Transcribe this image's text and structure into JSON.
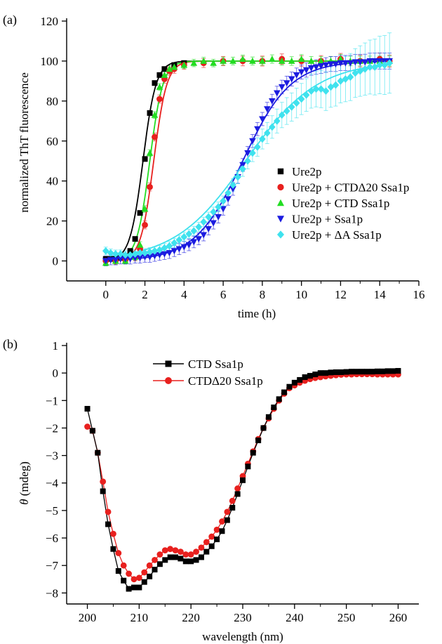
{
  "chart_data": [
    {
      "panel": "(a)",
      "type": "scatter",
      "xlabel": "time (h)",
      "ylabel": "normalized ThT fluorescence",
      "xlim": [
        -2,
        16
      ],
      "ylim": [
        -10,
        120
      ],
      "xticks": [
        0,
        2,
        4,
        6,
        8,
        10,
        12,
        14,
        16
      ],
      "yticks": [
        0,
        20,
        40,
        60,
        80,
        100,
        120
      ],
      "legend_position": "center-right",
      "series": [
        {
          "name": "Ure2p",
          "color": "#000000",
          "marker": "square",
          "midpoint": 1.9,
          "rate": 3.0,
          "error": 0,
          "x": [
            0,
            0.25,
            0.5,
            0.75,
            1.0,
            1.25,
            1.5,
            1.75,
            2.0,
            2.25,
            2.5,
            2.75,
            3.0,
            3.5,
            4.0
          ],
          "y": [
            1,
            1,
            1,
            1.5,
            2.5,
            5,
            11,
            24,
            51,
            74,
            89,
            93,
            96,
            98,
            99
          ]
        },
        {
          "name": "Ure2p + CTDΔ20 Ssa1p",
          "color": "#e8201e",
          "marker": "circle",
          "midpoint": 2.45,
          "rate": 3.0,
          "error": 3,
          "x": [
            0,
            0.5,
            1.0,
            1.5,
            1.75,
            2.0,
            2.25,
            2.5,
            2.75,
            3.0,
            3.25,
            3.5,
            4.0,
            5,
            6,
            7,
            8,
            9,
            10,
            11,
            12,
            13,
            14,
            14.5
          ],
          "y": [
            0,
            0,
            0.5,
            2,
            6,
            18,
            37,
            62,
            81,
            91,
            95,
            96,
            98,
            99,
            100,
            100,
            100,
            101,
            100,
            100,
            101,
            100,
            101,
            100
          ]
        },
        {
          "name": "Ure2p + CTD Ssa1p",
          "color": "#22dd22",
          "marker": "triangle-up",
          "midpoint": 2.25,
          "rate": 3.0,
          "error": 2.5,
          "x": [
            0,
            0.5,
            1.0,
            1.5,
            1.75,
            2.0,
            2.25,
            2.5,
            2.75,
            3.0,
            3.25,
            3.5,
            4.0,
            4.5,
            5,
            5.5,
            6,
            6.5,
            7,
            7.5,
            8,
            8.5,
            9,
            9.5,
            10,
            10.5,
            11,
            11.5,
            12,
            12.5,
            13,
            13.5,
            14,
            14.5
          ],
          "y": [
            -1,
            0,
            0,
            2,
            8,
            26,
            54,
            73,
            87,
            93,
            96,
            97,
            98,
            99,
            100,
            99,
            100,
            100,
            101,
            100,
            100,
            101,
            100,
            100,
            101,
            100,
            100,
            100,
            101,
            100,
            100,
            100,
            100,
            100
          ]
        },
        {
          "name": "Ure2p + Ssa1p",
          "color": "#1c1ce0",
          "marker": "triangle-down",
          "midpoint": 7.0,
          "rate": 0.82,
          "error": 4,
          "x": [
            0,
            0.25,
            0.5,
            0.75,
            1.0,
            1.25,
            1.5,
            1.75,
            2.0,
            2.25,
            2.5,
            2.75,
            3.0,
            3.25,
            3.5,
            3.75,
            4.0,
            4.25,
            4.5,
            4.75,
            5.0,
            5.25,
            5.5,
            5.75,
            6.0,
            6.25,
            6.5,
            6.75,
            7.0,
            7.25,
            7.5,
            7.75,
            8.0,
            8.25,
            8.5,
            8.75,
            9.0,
            9.25,
            9.5,
            9.75,
            10.0,
            10.25,
            10.5,
            10.75,
            11.0,
            11.25,
            11.5,
            11.75,
            12.0,
            12.25,
            12.5,
            12.75,
            13.0,
            13.25,
            13.5,
            13.75,
            14.0,
            14.25,
            14.5
          ],
          "y": [
            0,
            0.5,
            0.5,
            1,
            1,
            1,
            1.5,
            1.5,
            2,
            2,
            2.5,
            3,
            3.5,
            4,
            5,
            6,
            7,
            8,
            9.5,
            11,
            13,
            16,
            19,
            22,
            26,
            31,
            36,
            42,
            48,
            54,
            60,
            66,
            71,
            76,
            80,
            84,
            87,
            89,
            91,
            93,
            94.5,
            95.5,
            96.5,
            97,
            97.5,
            98,
            98.5,
            98.5,
            99,
            99,
            99,
            99.5,
            99.5,
            99.5,
            100,
            100,
            100,
            100,
            100
          ]
        },
        {
          "name": "Ure2p + ΔA Ssa1p",
          "color": "#3fe2ee",
          "marker": "diamond",
          "midpoint": 7.15,
          "rate": 0.55,
          "error": 8,
          "x": [
            0,
            0.25,
            0.5,
            0.75,
            1.0,
            1.25,
            1.5,
            1.75,
            2.0,
            2.25,
            2.5,
            2.75,
            3.0,
            3.25,
            3.5,
            3.75,
            4.0,
            4.25,
            4.5,
            4.75,
            5.0,
            5.25,
            5.5,
            5.75,
            6.0,
            6.25,
            6.5,
            6.75,
            7.0,
            7.25,
            7.5,
            7.75,
            8.0,
            8.25,
            8.5,
            8.75,
            9.0,
            9.25,
            9.5,
            9.75,
            10.0,
            10.25,
            10.5,
            10.75,
            11.0,
            11.25,
            11.5,
            11.75,
            12.0,
            12.25,
            12.5,
            12.75,
            13.0,
            13.25,
            13.5,
            13.75,
            14.0,
            14.25,
            14.5
          ],
          "y": [
            5,
            4,
            3.5,
            3.5,
            3,
            3,
            3.5,
            4,
            4,
            4.5,
            5,
            5.5,
            6.5,
            7.5,
            9,
            10.5,
            12,
            13.5,
            15,
            17,
            19.5,
            22,
            24.5,
            27,
            30,
            34,
            38,
            42,
            46,
            50,
            54,
            57,
            61,
            64,
            67,
            70,
            73,
            75,
            77,
            79,
            81,
            83,
            85,
            86,
            86,
            85,
            87,
            88,
            90,
            91,
            92,
            94,
            95,
            96,
            97,
            97,
            98,
            98,
            99
          ]
        }
      ]
    },
    {
      "panel": "(b)",
      "type": "line",
      "xlabel": "wavelength (nm)",
      "ylabel_symbol": "θ",
      "ylabel_rest": " (mdeg)",
      "xlim": [
        196,
        264
      ],
      "ylim": [
        -8.4,
        1
      ],
      "xticks": [
        200,
        210,
        220,
        230,
        240,
        250,
        260
      ],
      "yticks": [
        1,
        0,
        -1,
        -2,
        -3,
        -4,
        -5,
        -6,
        -7,
        -8
      ],
      "legend_position": "top-left",
      "x": [
        200,
        201,
        202,
        203,
        204,
        205,
        206,
        207,
        208,
        209,
        210,
        211,
        212,
        213,
        214,
        215,
        216,
        217,
        218,
        219,
        220,
        221,
        222,
        223,
        224,
        225,
        226,
        227,
        228,
        229,
        230,
        231,
        232,
        233,
        234,
        235,
        236,
        237,
        238,
        239,
        240,
        241,
        242,
        243,
        244,
        245,
        246,
        247,
        248,
        249,
        250,
        251,
        252,
        253,
        254,
        255,
        256,
        257,
        258,
        259,
        260
      ],
      "series": [
        {
          "name": "CTD Ssa1p",
          "color": "#000000",
          "marker": "square",
          "values": [
            -1.3,
            -2.1,
            -2.9,
            -4.3,
            -5.5,
            -6.4,
            -7.2,
            -7.55,
            -7.85,
            -7.8,
            -7.8,
            -7.6,
            -7.4,
            -7.15,
            -6.95,
            -6.8,
            -6.7,
            -6.7,
            -6.75,
            -6.85,
            -6.85,
            -6.8,
            -6.7,
            -6.5,
            -6.3,
            -6.05,
            -5.75,
            -5.35,
            -4.9,
            -4.4,
            -3.9,
            -3.4,
            -2.9,
            -2.45,
            -2.0,
            -1.6,
            -1.25,
            -0.95,
            -0.7,
            -0.5,
            -0.35,
            -0.25,
            -0.15,
            -0.1,
            -0.05,
            0.0,
            0.0,
            0.02,
            0.03,
            0.03,
            0.04,
            0.05,
            0.05,
            0.05,
            0.05,
            0.05,
            0.06,
            0.06,
            0.07,
            0.07,
            0.08
          ]
        },
        {
          "name": "CTDΔ20 Ssa1p",
          "color": "#e8201e",
          "marker": "circle",
          "values": [
            -1.95,
            -2.1,
            -2.9,
            -3.95,
            -5.05,
            -5.85,
            -6.55,
            -7.0,
            -7.3,
            -7.5,
            -7.45,
            -7.25,
            -7.0,
            -6.8,
            -6.6,
            -6.45,
            -6.4,
            -6.45,
            -6.5,
            -6.6,
            -6.6,
            -6.5,
            -6.35,
            -6.15,
            -5.95,
            -5.7,
            -5.4,
            -5.05,
            -4.65,
            -4.2,
            -3.75,
            -3.3,
            -2.85,
            -2.4,
            -2.0,
            -1.65,
            -1.3,
            -1.0,
            -0.75,
            -0.55,
            -0.45,
            -0.35,
            -0.28,
            -0.22,
            -0.18,
            -0.15,
            -0.12,
            -0.1,
            -0.08,
            -0.06,
            -0.05,
            -0.05,
            -0.04,
            -0.04,
            -0.04,
            -0.04,
            -0.05,
            -0.05,
            -0.05,
            -0.05,
            -0.05
          ]
        }
      ]
    }
  ]
}
